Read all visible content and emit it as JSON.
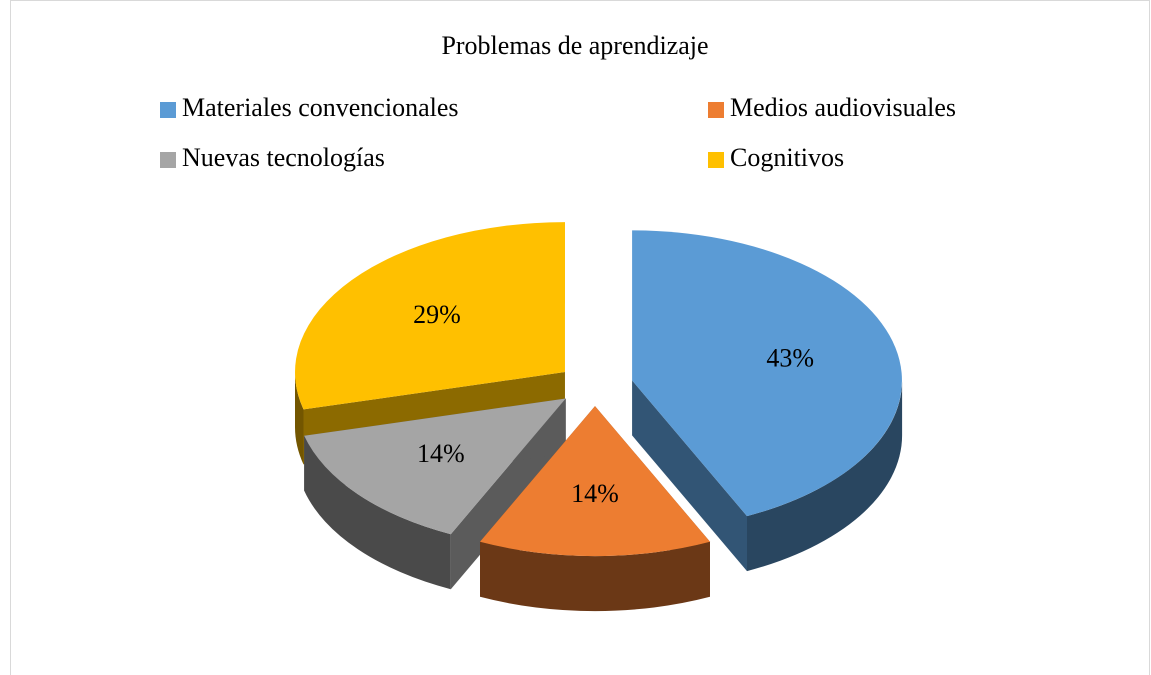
{
  "chart_data": {
    "type": "pie",
    "title": "Problemas de aprendizaje",
    "categories": [
      "Materiales convencionales",
      "Medios audiovisuales",
      "Nuevas tecnologías",
      "Cognitivos"
    ],
    "values": [
      43,
      14,
      14,
      29
    ],
    "value_labels": [
      "43%",
      "14%",
      "14%",
      "29%"
    ],
    "colors": [
      "#5b9bd5",
      "#ed7d31",
      "#a5a5a5",
      "#ffc000"
    ],
    "legend": "top"
  }
}
